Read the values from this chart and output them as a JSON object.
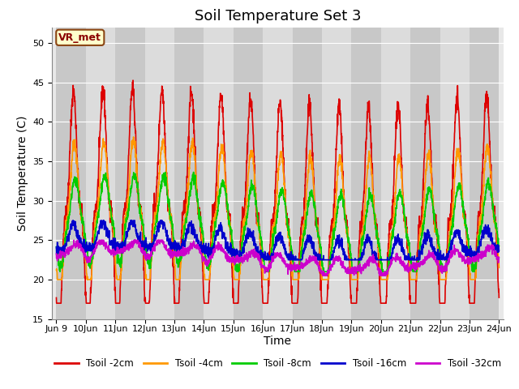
{
  "title": "Soil Temperature Set 3",
  "xlabel": "Time",
  "ylabel": "Soil Temperature (C)",
  "ylim": [
    15,
    52
  ],
  "yticks": [
    15,
    20,
    25,
    30,
    35,
    40,
    45,
    50
  ],
  "legend_label": "VR_met",
  "series_labels": [
    "Tsoil -2cm",
    "Tsoil -4cm",
    "Tsoil -8cm",
    "Tsoil -16cm",
    "Tsoil -32cm"
  ],
  "series_colors": [
    "#dd0000",
    "#ff9900",
    "#00cc00",
    "#0000cc",
    "#cc00cc"
  ],
  "series_linewidths": [
    1.2,
    1.2,
    1.2,
    1.2,
    1.2
  ],
  "start_day": 9,
  "end_day": 24,
  "plot_bg_color": "#e8e8e8",
  "grid_color": "white",
  "title_fontsize": 13,
  "axis_fontsize": 10,
  "tick_fontsize": 8,
  "stripe_light": "#dcdcdc",
  "stripe_dark": "#c8c8c8"
}
